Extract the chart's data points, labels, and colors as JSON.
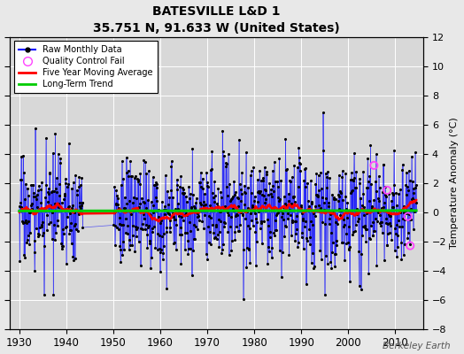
{
  "title": "BATESVILLE L&D 1",
  "subtitle": "35.751 N, 91.633 W (United States)",
  "ylabel": "Temperature Anomaly (°C)",
  "watermark": "Berkeley Earth",
  "xmin": 1928,
  "xmax": 2016,
  "ymin": -8,
  "ymax": 12,
  "yticks": [
    -8,
    -6,
    -4,
    -2,
    0,
    2,
    4,
    6,
    8,
    10,
    12
  ],
  "xticks": [
    1930,
    1940,
    1950,
    1960,
    1970,
    1980,
    1990,
    2000,
    2010
  ],
  "raw_color": "#0000ff",
  "moving_avg_color": "#ff0000",
  "trend_color": "#00cc00",
  "qc_color": "#ff44ff",
  "plot_bg": "#d8d8d8",
  "fig_bg": "#e8e8e8",
  "grid_color": "#ffffff",
  "seed": 17,
  "start_year": 1930.0,
  "gap_start": 1943.5,
  "gap_end": 1950.0,
  "end_year": 2014.5
}
